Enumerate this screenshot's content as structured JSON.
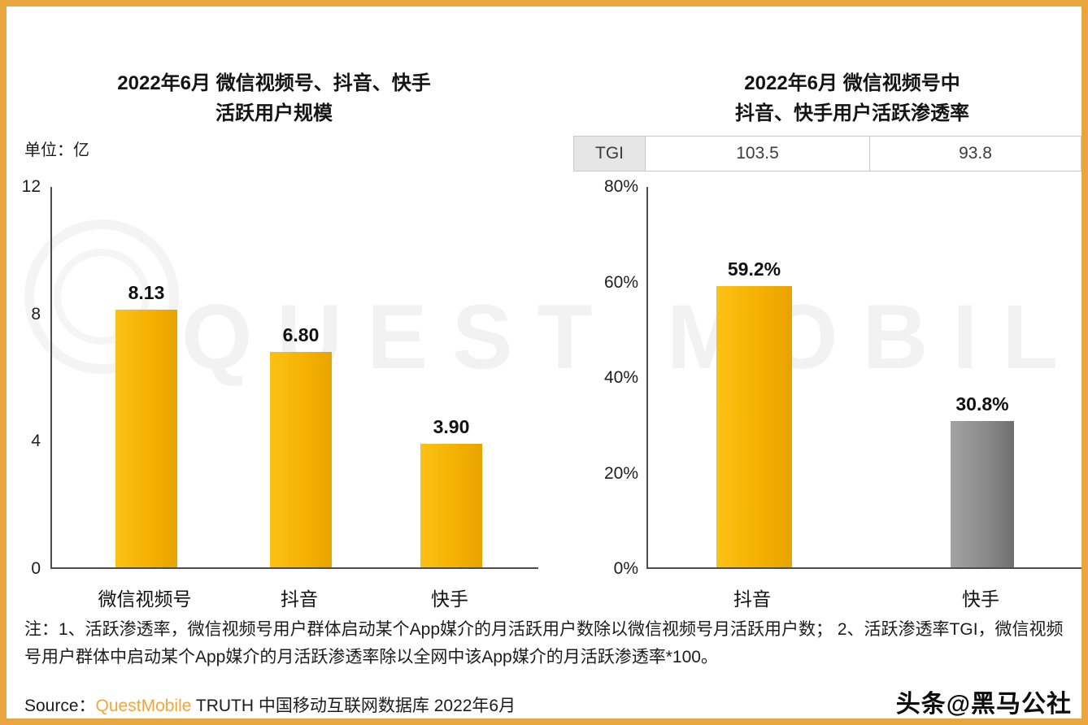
{
  "left_chart": {
    "title_line1": "2022年6月 微信视频号、抖音、快手",
    "title_line2": "活跃用户规模",
    "unit": "单位：亿",
    "y_ticks": [
      "12",
      "8",
      "4",
      "0"
    ],
    "bars": [
      {
        "label": "微信视频号",
        "value": "8.13"
      },
      {
        "label": "抖音",
        "value": "6.80"
      },
      {
        "label": "快手",
        "value": "3.90"
      }
    ]
  },
  "right_chart": {
    "title_line1": "2022年6月 微信视频号中",
    "title_line2": "抖音、快手用户活跃渗透率",
    "tgi": {
      "header": "TGI",
      "value1": "103.5",
      "value2": "93.8"
    },
    "y_ticks": [
      "80%",
      "60%",
      "40%",
      "20%",
      "0%"
    ],
    "bars": [
      {
        "label": "抖音",
        "value": "59.2%"
      },
      {
        "label": "快手",
        "value": "30.8%"
      }
    ]
  },
  "notes": "注：1、活跃渗透率，微信视频号用户群体启动某个App媒介的月活跃用户数除以微信视频号月活跃用户数； 2、活跃渗透率TGI，微信视频号用户群体中启动某个App媒介的月活跃渗透率除以全网中该App媒介的月活跃渗透率*100。",
  "source": {
    "prefix": "Source：",
    "brand": "QuestMobile",
    "rest": " TRUTH 中国移动互联网数据库 2022年6月"
  },
  "watermark": {
    "logo_text": "QUEST MOBILE"
  },
  "badge": "头条@黑马公社",
  "colors": {
    "accent_yellow": "#F5B200",
    "gray_bar": "#8B8B8B",
    "frame_orange": "#E9A63F"
  },
  "chart_data": [
    {
      "type": "bar",
      "title": "2022年6月 微信视频号、抖音、快手 活跃用户规模",
      "ylabel": "单位：亿",
      "categories": [
        "微信视频号",
        "抖音",
        "快手"
      ],
      "values": [
        8.13,
        6.8,
        3.9
      ],
      "ylim": [
        0,
        12
      ],
      "y_ticks": [
        0,
        4,
        8,
        12
      ],
      "grid": false,
      "bar_colors": [
        "#F5B200",
        "#F5B200",
        "#F5B200"
      ]
    },
    {
      "type": "bar",
      "title": "2022年6月 微信视频号中 抖音、快手用户活跃渗透率",
      "categories": [
        "抖音",
        "快手"
      ],
      "values": [
        59.2,
        30.8
      ],
      "unit": "%",
      "ylim": [
        0,
        80
      ],
      "y_ticks": [
        0,
        20,
        40,
        60,
        80
      ],
      "grid": false,
      "tgi": {
        "抖音": 103.5,
        "快手": 93.8
      },
      "bar_colors": [
        "#F5B200",
        "#8B8B8B"
      ]
    }
  ]
}
